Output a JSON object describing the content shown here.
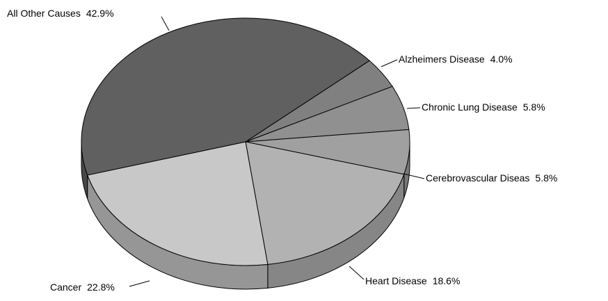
{
  "chart_data": {
    "type": "pie3d",
    "categories": [
      "All Other Causes",
      "Alzheimers Disease",
      "Chronic Lung Disease",
      "Cerebrovascular Diseas",
      "Heart Disease",
      "Cancer"
    ],
    "values": [
      42.9,
      4.0,
      5.8,
      5.8,
      18.6,
      22.8
    ],
    "value_labels": [
      "42.9%",
      "4.0%",
      "5.8%",
      "5.8%",
      "18.6%",
      "22.8%"
    ],
    "colors": [
      "#606060",
      "#808080",
      "#909090",
      "#a0a0a0",
      "#b2b2b2",
      "#c8c8c8"
    ]
  }
}
